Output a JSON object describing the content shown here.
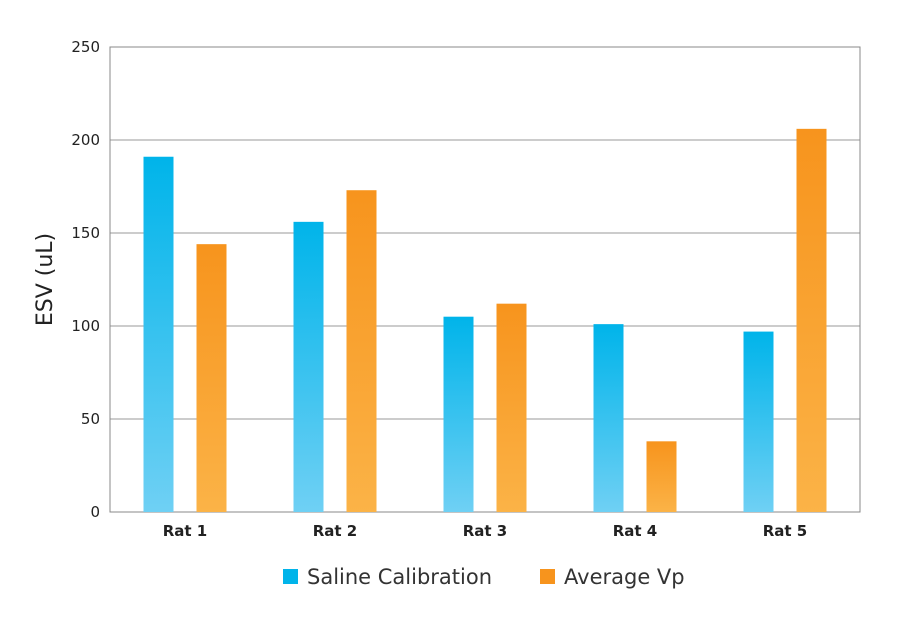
{
  "chart_data": {
    "type": "bar",
    "title": "",
    "xlabel": "",
    "ylabel": "ESV (uL)",
    "ylim": [
      0,
      250
    ],
    "yticks": [
      0,
      50,
      100,
      150,
      200,
      250
    ],
    "grid": true,
    "legend_position": "bottom",
    "categories": [
      "Rat 1",
      "Rat 2",
      "Rat 3",
      "Rat 4",
      "Rat 5"
    ],
    "series": [
      {
        "name": "Saline Calibration",
        "color_top": "#00b4ea",
        "color_bottom": "#6fd0f4",
        "values": [
          191,
          156,
          105,
          101,
          97
        ]
      },
      {
        "name": "Average Vp",
        "color_top": "#f7941d",
        "color_bottom": "#fbb347",
        "values": [
          144,
          173,
          112,
          38,
          206
        ]
      }
    ]
  }
}
